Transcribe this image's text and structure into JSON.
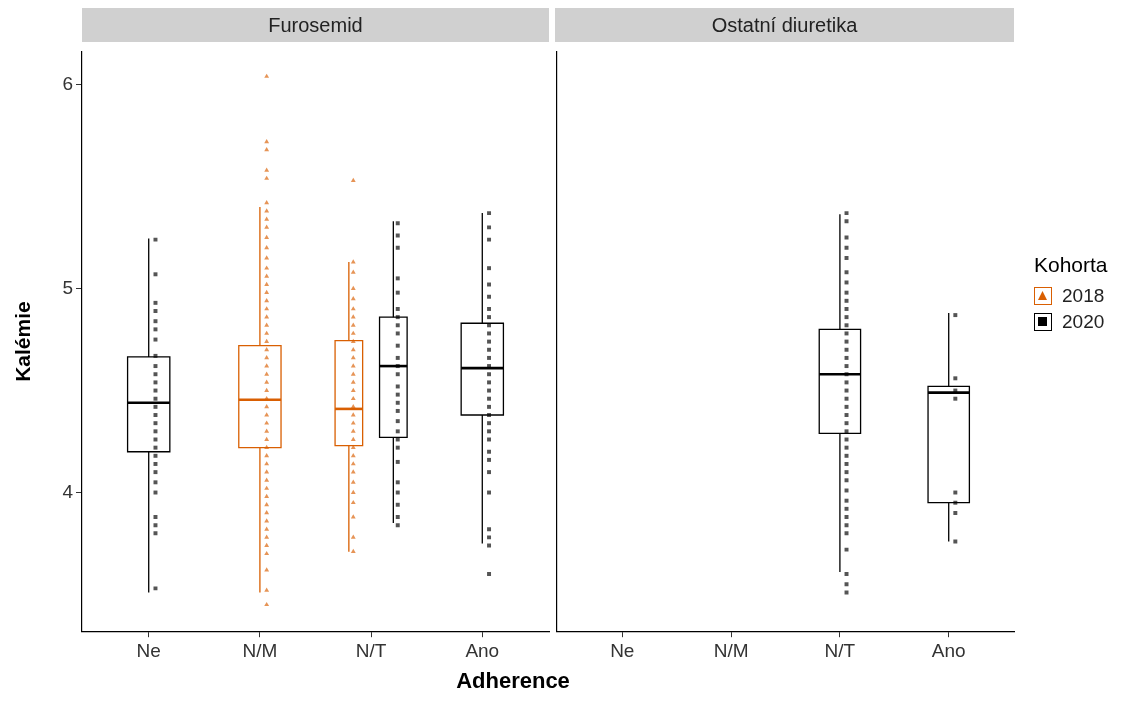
{
  "chart_data": [
    {
      "type": "box",
      "title": "Furosemid",
      "ylabel": "Kalémie",
      "xlabel": "Adherence",
      "categories": [
        "Ne",
        "N/M",
        "N/T",
        "Ano"
      ],
      "ylim": [
        3.32,
        6.16
      ],
      "yticks": [
        4,
        5,
        6
      ],
      "legend": false,
      "series": [
        {
          "color": "#d95f02",
          "boxes": [
            null,
            {
              "low": 3.51,
              "q1": 4.22,
              "median": 4.455,
              "q3": 4.72,
              "high": 5.4
            },
            {
              "low": 3.71,
              "q1": 4.23,
              "median": 4.41,
              "q3": 4.745,
              "high": 5.13
            },
            null
          ]
        },
        {
          "color": "#000000",
          "boxes": [
            {
              "low": 3.51,
              "q1": 4.2,
              "median": 4.44,
              "q3": 4.665,
              "high": 5.245
            },
            null,
            {
              "low": 3.85,
              "q1": 4.27,
              "median": 4.62,
              "q3": 4.86,
              "high": 5.33
            },
            {
              "low": 3.75,
              "q1": 4.38,
              "median": 4.61,
              "q3": 4.83,
              "high": 5.37
            }
          ]
        },
        {
          "type": "scatter",
          "color": "#d95f02",
          "marker": "triangle",
          "x": [
            "N/M",
            "N/M",
            "N/M",
            "N/M",
            "N/M",
            "N/M",
            "N/M",
            "N/M",
            "N/M",
            "N/M",
            "N/M",
            "N/M",
            "N/M",
            "N/M",
            "N/M",
            "N/M",
            "N/M",
            "N/M",
            "N/M",
            "N/M",
            "N/M",
            "N/M",
            "N/M",
            "N/M",
            "N/M",
            "N/M",
            "N/M",
            "N/M",
            "N/M",
            "N/M",
            "N/M",
            "N/M",
            "N/M",
            "N/M",
            "N/M",
            "N/M",
            "N/M",
            "N/M",
            "N/M",
            "N/M",
            "N/M",
            "N/M",
            "N/M",
            "N/M",
            "N/M",
            "N/M",
            "N/M",
            "N/M",
            "N/M",
            "N/M",
            "N/M",
            "N/T",
            "N/T",
            "N/T",
            "N/T",
            "N/T",
            "N/T",
            "N/T",
            "N/T",
            "N/T",
            "N/T",
            "N/T",
            "N/T",
            "N/T",
            "N/T",
            "N/T",
            "N/T",
            "N/T",
            "N/T",
            "N/T",
            "N/T",
            "N/T",
            "N/T",
            "N/T",
            "N/T",
            "N/T",
            "N/T",
            "N/T",
            "N/T",
            "N/T",
            "N/T",
            "N/T",
            "N/T"
          ],
          "values": [
            6.04,
            5.72,
            5.68,
            5.58,
            5.54,
            5.42,
            5.38,
            5.34,
            5.3,
            5.25,
            5.2,
            5.15,
            5.1,
            5.06,
            5.02,
            4.98,
            4.94,
            4.9,
            4.86,
            4.82,
            4.78,
            4.74,
            4.7,
            4.66,
            4.62,
            4.58,
            4.54,
            4.5,
            4.46,
            4.42,
            4.38,
            4.34,
            4.3,
            4.26,
            4.22,
            4.18,
            4.14,
            4.1,
            4.06,
            4.02,
            3.98,
            3.94,
            3.9,
            3.86,
            3.82,
            3.78,
            3.74,
            3.7,
            3.62,
            3.52,
            3.45,
            5.53,
            5.13,
            5.08,
            5.0,
            4.95,
            4.9,
            4.86,
            4.82,
            4.78,
            4.74,
            4.7,
            4.66,
            4.62,
            4.58,
            4.54,
            4.5,
            4.46,
            4.42,
            4.38,
            4.34,
            4.3,
            4.26,
            4.22,
            4.18,
            4.14,
            4.1,
            4.05,
            4.0,
            3.95,
            3.88,
            3.78,
            3.71
          ]
        },
        {
          "type": "scatter",
          "color": "#000000",
          "marker": "square",
          "x": [
            "Ne",
            "Ne",
            "Ne",
            "Ne",
            "Ne",
            "Ne",
            "Ne",
            "Ne",
            "Ne",
            "Ne",
            "Ne",
            "Ne",
            "Ne",
            "Ne",
            "Ne",
            "Ne",
            "Ne",
            "Ne",
            "Ne",
            "Ne",
            "Ne",
            "Ne",
            "Ne",
            "Ne",
            "Ne",
            "Ne",
            "Ne",
            "Ne",
            "N/T",
            "N/T",
            "N/T",
            "N/T",
            "N/T",
            "N/T",
            "N/T",
            "N/T",
            "N/T",
            "N/T",
            "N/T",
            "N/T",
            "N/T",
            "N/T",
            "N/T",
            "N/T",
            "N/T",
            "N/T",
            "N/T",
            "N/T",
            "N/T",
            "N/T",
            "N/T",
            "N/T",
            "N/T",
            "N/T",
            "N/T",
            "Ano",
            "Ano",
            "Ano",
            "Ano",
            "Ano",
            "Ano",
            "Ano",
            "Ano",
            "Ano",
            "Ano",
            "Ano",
            "Ano",
            "Ano",
            "Ano",
            "Ano",
            "Ano",
            "Ano",
            "Ano",
            "Ano",
            "Ano",
            "Ano",
            "Ano",
            "Ano",
            "Ano",
            "Ano",
            "Ano",
            "Ano",
            "Ano",
            "Ano",
            "Ano",
            "Ano"
          ],
          "values": [
            5.24,
            5.07,
            4.93,
            4.89,
            4.84,
            4.8,
            4.75,
            4.67,
            4.62,
            4.58,
            4.54,
            4.5,
            4.46,
            4.42,
            4.38,
            4.34,
            4.3,
            4.26,
            4.22,
            4.18,
            4.14,
            4.1,
            4.05,
            4.0,
            3.88,
            3.84,
            3.8,
            3.53,
            5.32,
            5.26,
            5.2,
            5.05,
            4.98,
            4.9,
            4.86,
            4.82,
            4.78,
            4.72,
            4.66,
            4.62,
            4.58,
            4.52,
            4.48,
            4.44,
            4.4,
            4.35,
            4.3,
            4.26,
            4.22,
            4.15,
            4.05,
            4.0,
            3.94,
            3.88,
            3.84,
            5.37,
            5.3,
            5.24,
            5.1,
            5.02,
            4.96,
            4.9,
            4.86,
            4.82,
            4.78,
            4.74,
            4.7,
            4.66,
            4.62,
            4.58,
            4.54,
            4.5,
            4.46,
            4.42,
            4.38,
            4.34,
            4.3,
            4.26,
            4.2,
            4.16,
            4.1,
            4.0,
            3.82,
            3.78,
            3.74,
            3.6
          ]
        }
      ]
    },
    {
      "type": "box",
      "title": "Ostatní diuretika",
      "categories": [
        "Ne",
        "N/M",
        "N/T",
        "Ano"
      ],
      "ylim": [
        3.32,
        6.16
      ],
      "yticks": [
        4,
        5,
        6
      ],
      "tick_labels": "x",
      "legend": "right",
      "legend_title": "Kohorta",
      "series": [
        {
          "name": "2018",
          "color": "#d95f02",
          "marker": "triangle",
          "boxes": [
            null,
            null,
            null,
            null
          ]
        },
        {
          "name": "2020",
          "color": "#000000",
          "marker": "square",
          "boxes": [
            null,
            null,
            {
              "low": 3.61,
              "q1": 4.29,
              "median": 4.58,
              "q3": 4.8,
              "high": 5.365
            },
            {
              "low": 3.76,
              "q1": 3.95,
              "median": 4.49,
              "q3": 4.52,
              "high": 4.88
            }
          ]
        },
        {
          "type": "scatter",
          "color": "#000000",
          "marker": "square",
          "x": [
            "N/T",
            "N/T",
            "N/T",
            "N/T",
            "N/T",
            "N/T",
            "N/T",
            "N/T",
            "N/T",
            "N/T",
            "N/T",
            "N/T",
            "N/T",
            "N/T",
            "N/T",
            "N/T",
            "N/T",
            "N/T",
            "N/T",
            "N/T",
            "N/T",
            "N/T",
            "N/T",
            "N/T",
            "N/T",
            "N/T",
            "N/T",
            "N/T",
            "N/T",
            "N/T",
            "N/T",
            "N/T",
            "N/T",
            "N/T",
            "N/T",
            "N/T",
            "N/T",
            "N/T",
            "N/T",
            "N/T",
            "N/T",
            "Ano",
            "Ano",
            "Ano",
            "Ano",
            "Ano",
            "Ano",
            "Ano",
            "Ano"
          ],
          "values": [
            5.37,
            5.33,
            5.25,
            5.2,
            5.15,
            5.08,
            5.03,
            4.98,
            4.94,
            4.9,
            4.86,
            4.82,
            4.78,
            4.74,
            4.7,
            4.66,
            4.62,
            4.58,
            4.54,
            4.5,
            4.46,
            4.42,
            4.38,
            4.34,
            4.3,
            4.26,
            4.22,
            4.18,
            4.14,
            4.1,
            4.06,
            4.01,
            3.96,
            3.92,
            3.88,
            3.84,
            3.8,
            3.72,
            3.6,
            3.55,
            3.51,
            4.87,
            4.56,
            4.5,
            4.46,
            4.0,
            3.95,
            3.9,
            3.76
          ]
        }
      ]
    }
  ]
}
